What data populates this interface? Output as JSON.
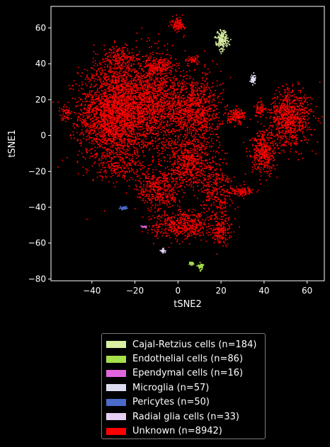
{
  "chart_data": {
    "type": "scatter",
    "title": "",
    "xlabel": "tSNE2",
    "ylabel": "tSNE1",
    "xlim": [
      -59,
      68
    ],
    "ylim": [
      -81,
      72
    ],
    "xticks": [
      -40,
      -20,
      0,
      20,
      40,
      60
    ],
    "yticks": [
      -80,
      -60,
      -40,
      -20,
      0,
      20,
      40,
      60
    ],
    "xtick_labels": [
      "−40",
      "−20",
      "0",
      "20",
      "40",
      "60"
    ],
    "ytick_labels": [
      "−80",
      "−60",
      "−40",
      "−20",
      "0",
      "20",
      "40",
      "60"
    ],
    "grid": false,
    "legend_position": "below",
    "series": [
      {
        "name": "Cajal-Retzius cells (n=184)",
        "color": "#d9f0a3",
        "n": 184,
        "clusters": [
          {
            "x": 20.5,
            "y": 53,
            "sx": 1.4,
            "sy": 2.6,
            "n": 184
          }
        ]
      },
      {
        "name": "Endothelial cells (n=86)",
        "color": "#a6e04a",
        "n": 86,
        "clusters": [
          {
            "x": 10.5,
            "y": -72.8,
            "sx": 0.6,
            "sy": 0.9,
            "n": 56
          },
          {
            "x": 6.5,
            "y": -71.3,
            "sx": 0.5,
            "sy": 0.4,
            "n": 30
          }
        ]
      },
      {
        "name": "Ependymal cells (n=16)",
        "color": "#e066e0",
        "n": 16,
        "clusters": [
          {
            "x": -15.5,
            "y": -51,
            "sx": 0.6,
            "sy": 0.3,
            "n": 16
          }
        ]
      },
      {
        "name": "Microglia (n=57)",
        "color": "#dcdcf2",
        "n": 57,
        "clusters": [
          {
            "x": 34.8,
            "y": 31.5,
            "sx": 0.6,
            "sy": 1.3,
            "n": 57
          }
        ]
      },
      {
        "name": "Pericytes (n=50)",
        "color": "#4a6cc8",
        "n": 50,
        "clusters": [
          {
            "x": -25,
            "y": -40.5,
            "sx": 0.7,
            "sy": 0.4,
            "n": 50
          }
        ]
      },
      {
        "name": "Radial glia cells (n=33)",
        "color": "#e6cff2",
        "n": 33,
        "clusters": [
          {
            "x": -7,
            "y": -64.2,
            "sx": 0.5,
            "sy": 0.7,
            "n": 33
          }
        ]
      },
      {
        "name": "Unknown (n=8942)",
        "color": "#ff0000",
        "n": 8942,
        "clusters": [
          {
            "x": -30,
            "y": 12,
            "sx": 8,
            "sy": 14,
            "n": 2400
          },
          {
            "x": -12,
            "y": 18,
            "sx": 8,
            "sy": 13,
            "n": 1500
          },
          {
            "x": -27,
            "y": 42,
            "sx": 4,
            "sy": 4,
            "n": 200
          },
          {
            "x": -9,
            "y": 38,
            "sx": 3,
            "sy": 2.5,
            "n": 160
          },
          {
            "x": 8,
            "y": 14,
            "sx": 6,
            "sy": 10,
            "n": 900
          },
          {
            "x": 5,
            "y": -15,
            "sx": 6,
            "sy": 7,
            "n": 600
          },
          {
            "x": -9,
            "y": -30,
            "sx": 5,
            "sy": 6,
            "n": 400
          },
          {
            "x": 18,
            "y": -32,
            "sx": 4,
            "sy": 9,
            "n": 300
          },
          {
            "x": 2,
            "y": -50,
            "sx": 7,
            "sy": 4,
            "n": 500
          },
          {
            "x": 20,
            "y": -53,
            "sx": 2,
            "sy": 4,
            "n": 150
          },
          {
            "x": 0,
            "y": 62,
            "sx": 1.5,
            "sy": 2,
            "n": 100
          },
          {
            "x": 7,
            "y": 42,
            "sx": 1.5,
            "sy": 1,
            "n": 50
          },
          {
            "x": -52,
            "y": 13,
            "sx": 1.2,
            "sy": 2,
            "n": 50
          },
          {
            "x": 52,
            "y": 10,
            "sx": 5,
            "sy": 8,
            "n": 800
          },
          {
            "x": 40,
            "y": -10,
            "sx": 3,
            "sy": 6,
            "n": 400
          },
          {
            "x": 27,
            "y": 11,
            "sx": 2,
            "sy": 2,
            "n": 150
          },
          {
            "x": 38,
            "y": 15,
            "sx": 1.5,
            "sy": 2,
            "n": 60
          },
          {
            "x": 29,
            "y": -31,
            "sx": 3,
            "sy": 1,
            "n": 100
          },
          {
            "x": -26,
            "y": -18,
            "sx": 5,
            "sy": 4,
            "n": 122
          }
        ]
      }
    ]
  }
}
